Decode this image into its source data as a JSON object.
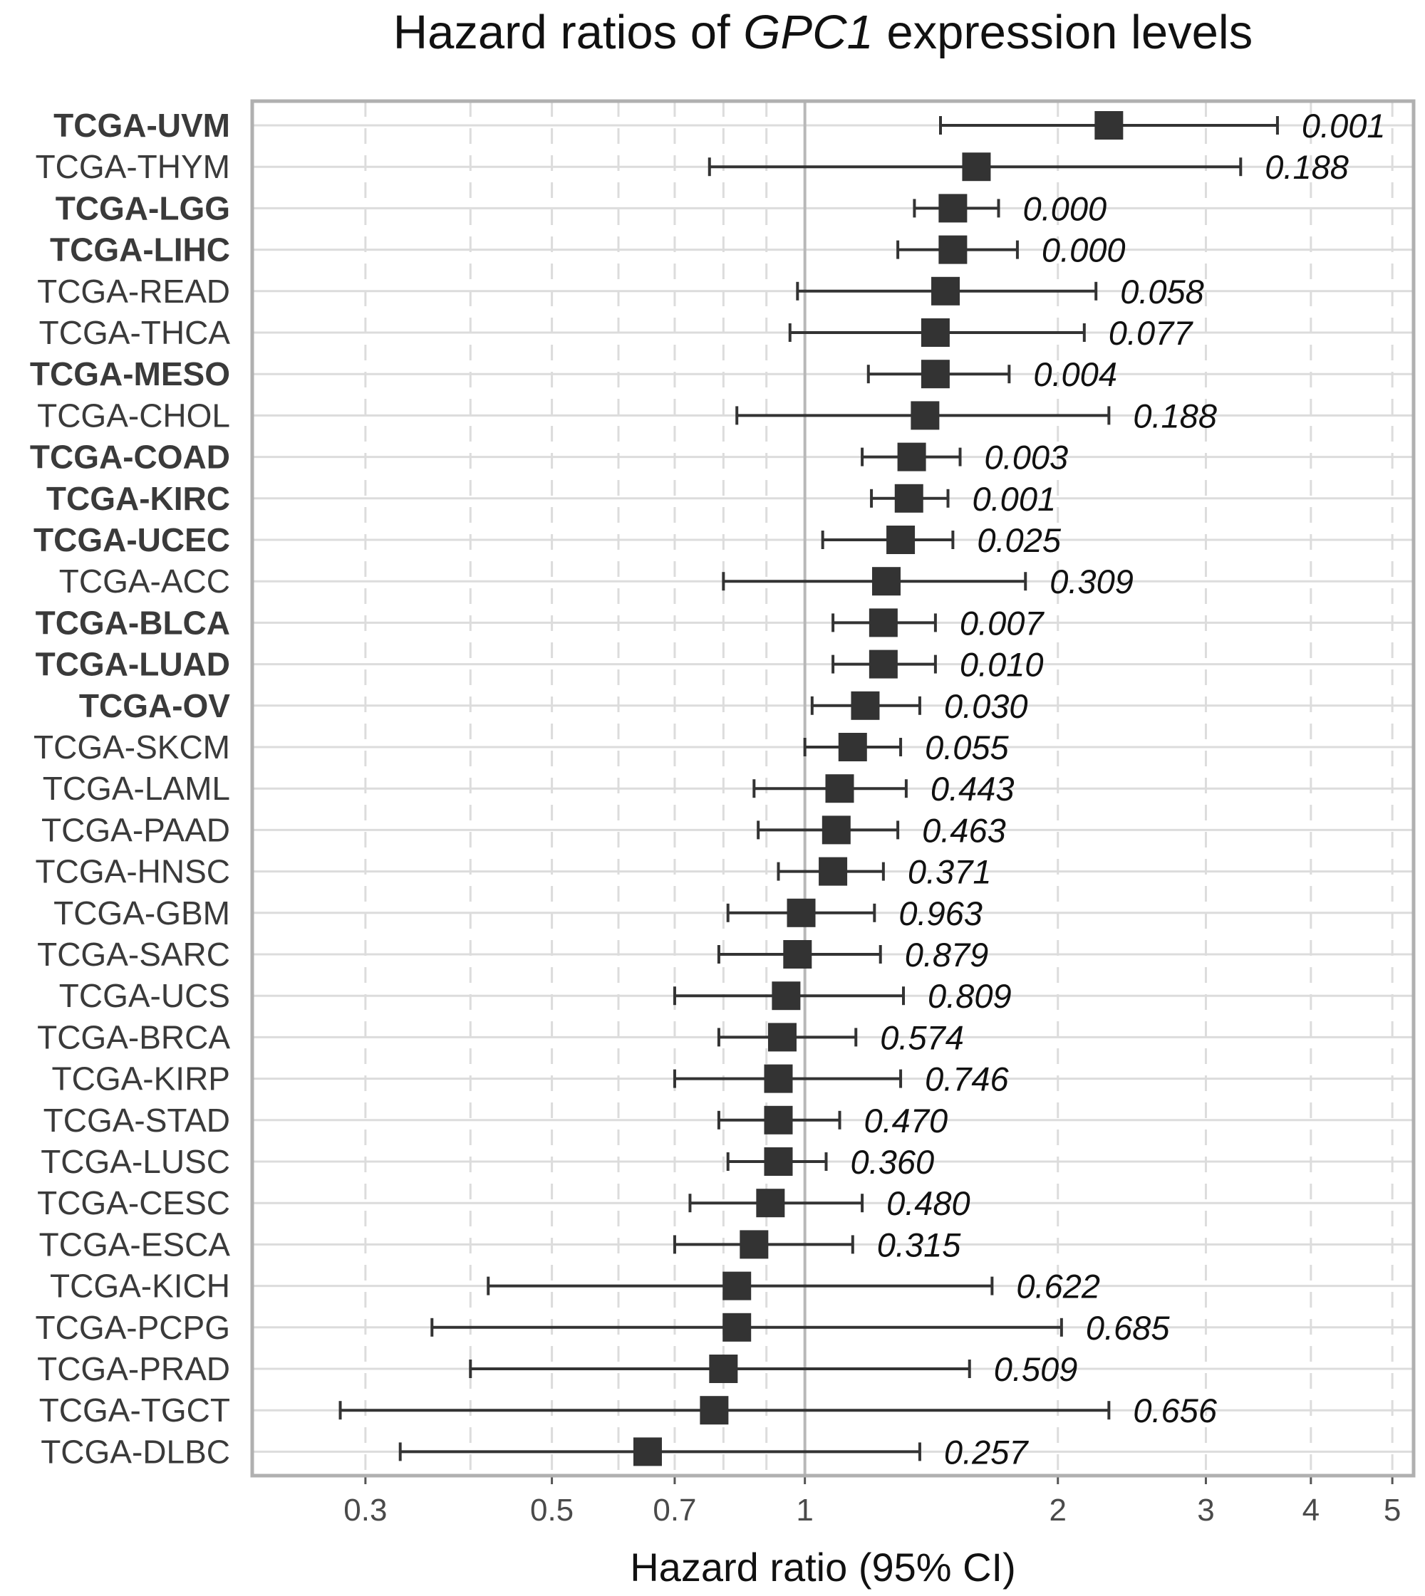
{
  "title": {
    "prefix": "Hazard ratios of ",
    "gene": "GPC1",
    "suffix": " expression levels"
  },
  "xlabel": "Hazard ratio (95% CI)",
  "colors": {
    "marker": "#333333",
    "grid": "#dcdcdc",
    "reference_line": "#b8b8b8",
    "frame": "#b0b0b0"
  },
  "chart_data": {
    "type": "forest",
    "title": "Hazard ratios of GPC1 expression levels",
    "xlabel": "Hazard ratio (95% CI)",
    "x_scale": "log",
    "xlim": [
      0.22,
      5.3
    ],
    "xticks": [
      0.3,
      0.5,
      0.7,
      1,
      2,
      3,
      4,
      5
    ],
    "xtick_labels": [
      "0.3",
      "0.5",
      "0.7",
      "1",
      "2",
      "3",
      "4",
      "5"
    ],
    "reference_line": 1,
    "grid": true,
    "rows": [
      {
        "label": "TCGA-UVM",
        "bold": true,
        "hr": 2.3,
        "lower": 1.45,
        "upper": 3.65,
        "p": "0.001"
      },
      {
        "label": "TCGA-THYM",
        "bold": false,
        "hr": 1.6,
        "lower": 0.77,
        "upper": 3.3,
        "p": "0.188"
      },
      {
        "label": "TCGA-LGG",
        "bold": true,
        "hr": 1.5,
        "lower": 1.35,
        "upper": 1.7,
        "p": "0.000"
      },
      {
        "label": "TCGA-LIHC",
        "bold": true,
        "hr": 1.5,
        "lower": 1.29,
        "upper": 1.79,
        "p": "0.000"
      },
      {
        "label": "TCGA-READ",
        "bold": false,
        "hr": 1.47,
        "lower": 0.98,
        "upper": 2.22,
        "p": "0.058"
      },
      {
        "label": "TCGA-THCA",
        "bold": false,
        "hr": 1.43,
        "lower": 0.96,
        "upper": 2.15,
        "p": "0.077"
      },
      {
        "label": "TCGA-MESO",
        "bold": true,
        "hr": 1.43,
        "lower": 1.19,
        "upper": 1.75,
        "p": "0.004"
      },
      {
        "label": "TCGA-CHOL",
        "bold": false,
        "hr": 1.39,
        "lower": 0.83,
        "upper": 2.3,
        "p": "0.188"
      },
      {
        "label": "TCGA-COAD",
        "bold": true,
        "hr": 1.34,
        "lower": 1.17,
        "upper": 1.53,
        "p": "0.003"
      },
      {
        "label": "TCGA-KIRC",
        "bold": true,
        "hr": 1.33,
        "lower": 1.2,
        "upper": 1.48,
        "p": "0.001"
      },
      {
        "label": "TCGA-UCEC",
        "bold": true,
        "hr": 1.3,
        "lower": 1.05,
        "upper": 1.5,
        "p": "0.025"
      },
      {
        "label": "TCGA-ACC",
        "bold": false,
        "hr": 1.25,
        "lower": 0.8,
        "upper": 1.83,
        "p": "0.309"
      },
      {
        "label": "TCGA-BLCA",
        "bold": true,
        "hr": 1.24,
        "lower": 1.08,
        "upper": 1.43,
        "p": "0.007"
      },
      {
        "label": "TCGA-LUAD",
        "bold": true,
        "hr": 1.24,
        "lower": 1.08,
        "upper": 1.43,
        "p": "0.010"
      },
      {
        "label": "TCGA-OV",
        "bold": true,
        "hr": 1.18,
        "lower": 1.02,
        "upper": 1.37,
        "p": "0.030"
      },
      {
        "label": "TCGA-SKCM",
        "bold": false,
        "hr": 1.14,
        "lower": 1.0,
        "upper": 1.3,
        "p": "0.055"
      },
      {
        "label": "TCGA-LAML",
        "bold": false,
        "hr": 1.1,
        "lower": 0.87,
        "upper": 1.32,
        "p": "0.443"
      },
      {
        "label": "TCGA-PAAD",
        "bold": false,
        "hr": 1.09,
        "lower": 0.88,
        "upper": 1.29,
        "p": "0.463"
      },
      {
        "label": "TCGA-HNSC",
        "bold": false,
        "hr": 1.08,
        "lower": 0.93,
        "upper": 1.24,
        "p": "0.371"
      },
      {
        "label": "TCGA-GBM",
        "bold": false,
        "hr": 0.99,
        "lower": 0.81,
        "upper": 1.21,
        "p": "0.963"
      },
      {
        "label": "TCGA-SARC",
        "bold": false,
        "hr": 0.98,
        "lower": 0.79,
        "upper": 1.23,
        "p": "0.879"
      },
      {
        "label": "TCGA-UCS",
        "bold": false,
        "hr": 0.95,
        "lower": 0.7,
        "upper": 1.31,
        "p": "0.809"
      },
      {
        "label": "TCGA-BRCA",
        "bold": false,
        "hr": 0.94,
        "lower": 0.79,
        "upper": 1.15,
        "p": "0.574"
      },
      {
        "label": "TCGA-KIRP",
        "bold": false,
        "hr": 0.93,
        "lower": 0.7,
        "upper": 1.3,
        "p": "0.746"
      },
      {
        "label": "TCGA-STAD",
        "bold": false,
        "hr": 0.93,
        "lower": 0.79,
        "upper": 1.1,
        "p": "0.470"
      },
      {
        "label": "TCGA-LUSC",
        "bold": false,
        "hr": 0.93,
        "lower": 0.81,
        "upper": 1.06,
        "p": "0.360"
      },
      {
        "label": "TCGA-CESC",
        "bold": false,
        "hr": 0.91,
        "lower": 0.73,
        "upper": 1.17,
        "p": "0.480"
      },
      {
        "label": "TCGA-ESCA",
        "bold": false,
        "hr": 0.87,
        "lower": 0.7,
        "upper": 1.14,
        "p": "0.315"
      },
      {
        "label": "TCGA-KICH",
        "bold": false,
        "hr": 0.83,
        "lower": 0.42,
        "upper": 1.67,
        "p": "0.622"
      },
      {
        "label": "TCGA-PCPG",
        "bold": false,
        "hr": 0.83,
        "lower": 0.36,
        "upper": 2.02,
        "p": "0.685"
      },
      {
        "label": "TCGA-PRAD",
        "bold": false,
        "hr": 0.8,
        "lower": 0.4,
        "upper": 1.57,
        "p": "0.509"
      },
      {
        "label": "TCGA-TGCT",
        "bold": false,
        "hr": 0.78,
        "lower": 0.28,
        "upper": 2.3,
        "p": "0.656"
      },
      {
        "label": "TCGA-DLBC",
        "bold": false,
        "hr": 0.65,
        "lower": 0.33,
        "upper": 1.37,
        "p": "0.257"
      }
    ]
  }
}
